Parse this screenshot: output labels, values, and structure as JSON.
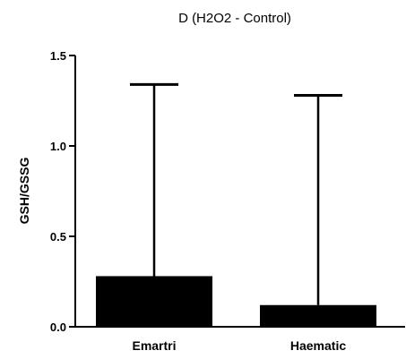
{
  "chart_data": {
    "type": "bar",
    "title": "D (H2O2 - Control)",
    "ylabel": "GSH/GSSG",
    "xlabel": "",
    "categories": [
      "Emartri",
      "Haematic"
    ],
    "values": [
      0.28,
      0.12
    ],
    "error_upper": [
      1.34,
      1.28
    ],
    "ylim": [
      0,
      1.5
    ],
    "yticks": [
      0.0,
      0.5,
      1.0,
      1.5
    ],
    "ytick_labels": [
      "0.0",
      "0.5",
      "1.0",
      "1.5"
    ],
    "grid": false,
    "legend": "none",
    "bar_color": "#000000"
  }
}
